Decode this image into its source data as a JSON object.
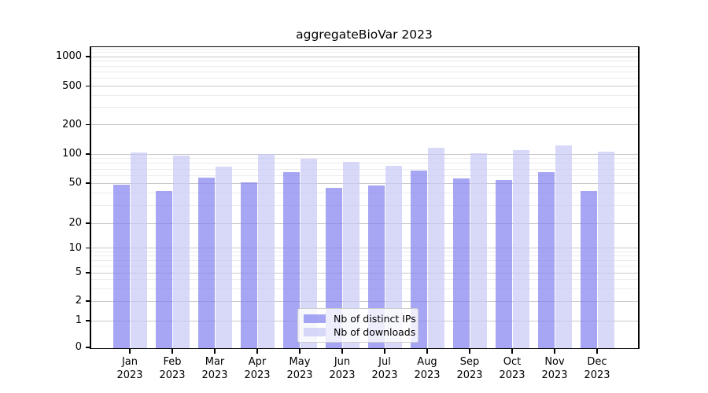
{
  "title": "aggregateBioVar 2023",
  "chart_data": {
    "type": "bar",
    "title": "aggregateBioVar 2023",
    "categories": [
      "Jan",
      "Feb",
      "Mar",
      "Apr",
      "May",
      "Jun",
      "Jul",
      "Aug",
      "Sep",
      "Oct",
      "Nov",
      "Dec"
    ],
    "year_label": "2023",
    "series": [
      {
        "name": "Nb of distinct IPs",
        "color": "#8080f0",
        "alpha": 0.7,
        "values": [
          48,
          42,
          57,
          51,
          65,
          45,
          47,
          67,
          56,
          54,
          65,
          42
        ]
      },
      {
        "name": "Nb of downloads",
        "color": "#c8c8f6",
        "alpha": 0.7,
        "values": [
          103,
          97,
          74,
          100,
          90,
          83,
          76,
          116,
          102,
          110,
          122,
          105
        ]
      }
    ],
    "yscale": "symlog",
    "yticks": [
      0,
      1,
      2,
      5,
      10,
      20,
      50,
      100,
      200,
      500,
      1000
    ],
    "y_minor_gridlines": [
      3,
      4,
      6,
      7,
      8,
      9,
      30,
      40,
      60,
      70,
      80,
      90,
      300,
      400,
      600,
      700,
      800,
      900,
      1100,
      1200
    ],
    "ylim": [
      0,
      1250
    ],
    "grid": true,
    "legend_position": "lower center"
  },
  "colors": {
    "grid_major": "#c8c8c8",
    "grid_minor": "#ececec",
    "spine": "#000000",
    "background": "#ffffff"
  }
}
